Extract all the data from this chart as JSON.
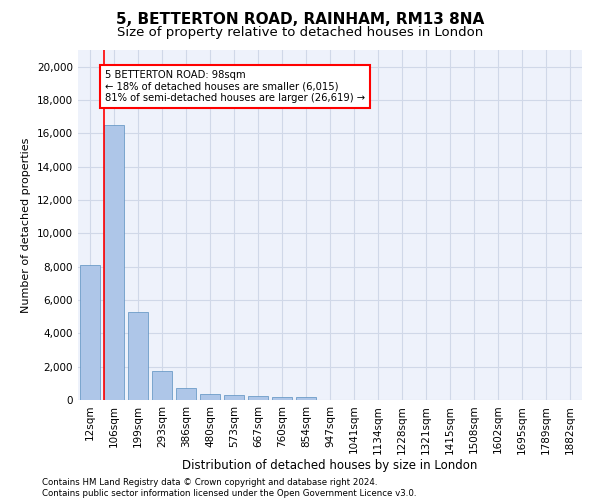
{
  "title": "5, BETTERTON ROAD, RAINHAM, RM13 8NA",
  "subtitle": "Size of property relative to detached houses in London",
  "xlabel": "Distribution of detached houses by size in London",
  "ylabel": "Number of detached properties",
  "categories": [
    "12sqm",
    "106sqm",
    "199sqm",
    "293sqm",
    "386sqm",
    "480sqm",
    "573sqm",
    "667sqm",
    "760sqm",
    "854sqm",
    "947sqm",
    "1041sqm",
    "1134sqm",
    "1228sqm",
    "1321sqm",
    "1415sqm",
    "1508sqm",
    "1602sqm",
    "1695sqm",
    "1789sqm",
    "1882sqm"
  ],
  "values": [
    8100,
    16500,
    5300,
    1750,
    700,
    370,
    280,
    220,
    190,
    170,
    0,
    0,
    0,
    0,
    0,
    0,
    0,
    0,
    0,
    0,
    0
  ],
  "bar_color": "#aec6e8",
  "bar_edge_color": "#5a8fc0",
  "annotation_text_line1": "5 BETTERTON ROAD: 98sqm",
  "annotation_text_line2": "← 18% of detached houses are smaller (6,015)",
  "annotation_text_line3": "81% of semi-detached houses are larger (26,619) →",
  "annotation_box_color": "white",
  "annotation_box_edge_color": "red",
  "vline_color": "red",
  "ylim": [
    0,
    21000
  ],
  "yticks": [
    0,
    2000,
    4000,
    6000,
    8000,
    10000,
    12000,
    14000,
    16000,
    18000,
    20000
  ],
  "grid_color": "#d0d8e8",
  "background_color": "#eef2fb",
  "footer_line1": "Contains HM Land Registry data © Crown copyright and database right 2024.",
  "footer_line2": "Contains public sector information licensed under the Open Government Licence v3.0.",
  "title_fontsize": 11,
  "subtitle_fontsize": 9.5
}
